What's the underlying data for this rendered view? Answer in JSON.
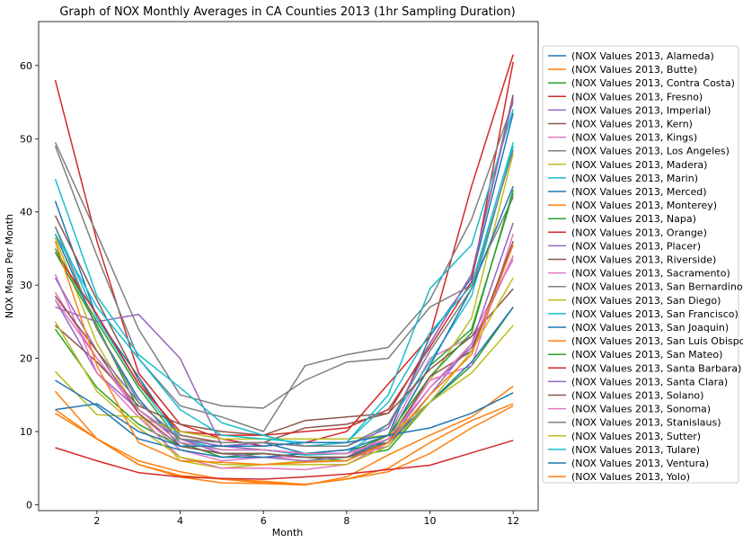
{
  "chart_data": {
    "type": "line",
    "title": "Graph of NOX Monthly Averages in CA Counties 2013 (1hr Sampling Duration)",
    "xlabel": "Month",
    "ylabel": "NOX Mean Per Month",
    "xlim": [
      0.6,
      12.6
    ],
    "ylim": [
      -0.8,
      66
    ],
    "xticks": [
      2,
      4,
      6,
      8,
      10,
      12
    ],
    "yticks": [
      0,
      10,
      20,
      30,
      40,
      50,
      60
    ],
    "grid": false,
    "legend_position": "outside-right",
    "x": [
      1,
      2,
      3,
      4,
      5,
      6,
      7,
      8,
      9,
      10,
      11,
      12
    ],
    "series": [
      {
        "name": "(NOX Values 2013, Alameda)",
        "color": "#1f77b4",
        "values": [
          41.5,
          25.5,
          17.5,
          9.0,
          8.0,
          8.5,
          7.0,
          7.5,
          9.5,
          23.0,
          31.0,
          53.5
        ]
      },
      {
        "name": "(NOX Values 2013, Butte)",
        "color": "#ff7f0e",
        "values": [
          12.5,
          9.0,
          5.5,
          3.8,
          3.0,
          2.9,
          2.7,
          3.8,
          6.8,
          9.5,
          12.0,
          16.2
        ]
      },
      {
        "name": "(NOX Values 2013, Contra Costa)",
        "color": "#2ca02c",
        "values": [
          35.0,
          25.0,
          16.0,
          8.5,
          6.5,
          7.0,
          6.5,
          6.0,
          9.0,
          19.0,
          24.0,
          42.5
        ]
      },
      {
        "name": "(NOX Values 2013, Fresno)",
        "color": "#d62728",
        "values": [
          58.0,
          36.0,
          18.0,
          11.0,
          9.0,
          8.0,
          8.5,
          10.0,
          16.5,
          23.0,
          43.5,
          61.5
        ]
      },
      {
        "name": "(NOX Values 2013, Imperial)",
        "color": "#9467bd",
        "values": [
          27.0,
          25.0,
          26.0,
          20.0,
          8.0,
          7.5,
          7.0,
          7.0,
          8.5,
          16.0,
          21.5,
          34.0
        ]
      },
      {
        "name": "(NOX Values 2013, Kern)",
        "color": "#8c564b",
        "values": [
          39.5,
          28.0,
          17.0,
          9.5,
          8.5,
          8.5,
          10.5,
          11.0,
          12.5,
          22.0,
          31.5,
          56.0
        ]
      },
      {
        "name": "(NOX Values 2013, Kings)",
        "color": "#e377c2",
        "values": [
          29.0,
          20.0,
          12.5,
          7.5,
          6.0,
          6.5,
          6.5,
          6.5,
          9.5,
          20.0,
          23.0,
          33.5
        ]
      },
      {
        "name": "(NOX Values 2013, Los Angeles)",
        "color": "#7f7f7f",
        "values": [
          49.5,
          37.0,
          24.0,
          15.0,
          13.5,
          13.2,
          17.0,
          19.5,
          20.0,
          27.0,
          30.0,
          42.0
        ]
      },
      {
        "name": "(NOX Values 2013, Madera)",
        "color": "#bcbd22",
        "values": [
          36.5,
          22.0,
          12.5,
          6.0,
          5.0,
          5.5,
          6.0,
          6.0,
          9.0,
          17.0,
          25.5,
          48.0
        ]
      },
      {
        "name": "(NOX Values 2013, Marin)",
        "color": "#17becf",
        "values": [
          38.0,
          25.5,
          16.5,
          9.0,
          7.5,
          7.5,
          6.8,
          7.0,
          11.0,
          19.5,
          28.5,
          49.0
        ]
      },
      {
        "name": "(NOX Values 2013, Merced)",
        "color": "#1f77b4",
        "values": [
          37.0,
          24.0,
          14.5,
          8.0,
          7.0,
          7.0,
          6.5,
          6.5,
          9.0,
          19.0,
          29.5,
          43.5
        ]
      },
      {
        "name": "(NOX Values 2013, Monterey)",
        "color": "#ff7f0e",
        "values": [
          13.0,
          9.0,
          6.0,
          4.5,
          3.5,
          3.2,
          2.8,
          3.5,
          4.5,
          7.0,
          10.5,
          13.5
        ]
      },
      {
        "name": "(NOX Values 2013, Napa)",
        "color": "#2ca02c",
        "values": [
          24.0,
          16.0,
          11.0,
          8.0,
          7.0,
          7.0,
          6.5,
          6.5,
          7.5,
          14.0,
          19.0,
          27.0
        ]
      },
      {
        "name": "(NOX Values 2013, Orange)",
        "color": "#d62728",
        "values": [
          34.5,
          26.0,
          16.5,
          10.0,
          9.5,
          9.5,
          10.0,
          10.5,
          13.0,
          21.5,
          30.5,
          60.5
        ]
      },
      {
        "name": "(NOX Values 2013, Placer)",
        "color": "#9467bd",
        "values": [
          28.0,
          18.0,
          13.0,
          9.0,
          7.0,
          6.5,
          6.0,
          6.5,
          8.0,
          15.0,
          22.0,
          38.5
        ]
      },
      {
        "name": "(NOX Values 2013, Riverside)",
        "color": "#8c564b",
        "values": [
          24.5,
          19.5,
          13.5,
          11.0,
          10.0,
          9.5,
          11.5,
          12.0,
          12.5,
          18.5,
          23.0,
          29.5
        ]
      },
      {
        "name": "(NOX Values 2013, Sacramento)",
        "color": "#e377c2",
        "values": [
          31.5,
          18.0,
          12.0,
          6.5,
          5.0,
          5.0,
          4.8,
          5.5,
          8.5,
          17.0,
          19.0,
          37.0
        ]
      },
      {
        "name": "(NOX Values 2013, San Bernardino)",
        "color": "#7f7f7f",
        "values": [
          49.0,
          34.0,
          20.0,
          13.5,
          12.0,
          10.0,
          19.0,
          20.5,
          21.5,
          28.0,
          39.0,
          55.0
        ]
      },
      {
        "name": "(NOX Values 2013, San Diego)",
        "color": "#bcbd22",
        "values": [
          18.2,
          12.3,
          12.0,
          10.0,
          9.0,
          9.0,
          9.0,
          9.0,
          9.5,
          14.0,
          18.0,
          24.5
        ]
      },
      {
        "name": "(NOX Values 2013, San Francisco)",
        "color": "#17becf",
        "values": [
          44.5,
          28.5,
          20.5,
          16.0,
          11.2,
          9.5,
          8.0,
          8.5,
          15.0,
          29.5,
          35.5,
          54.0
        ]
      },
      {
        "name": "(NOX Values 2013, San Joaquin)",
        "color": "#1f77b4",
        "values": [
          17.0,
          13.5,
          9.0,
          7.5,
          6.5,
          6.5,
          7.0,
          7.5,
          8.5,
          14.0,
          19.5,
          27.0
        ]
      },
      {
        "name": "(NOX Values 2013, San Luis Obispo)",
        "color": "#ff7f0e",
        "values": [
          15.5,
          9.0,
          5.5,
          4.0,
          3.5,
          3.0,
          2.8,
          3.5,
          5.0,
          8.5,
          11.5,
          13.8
        ]
      },
      {
        "name": "(NOX Values 2013, San Mateo)",
        "color": "#2ca02c",
        "values": [
          34.5,
          24.5,
          13.0,
          8.5,
          7.5,
          7.5,
          7.0,
          7.0,
          9.5,
          17.5,
          23.5,
          43.0
        ]
      },
      {
        "name": "(NOX Values 2013, Santa Barbara)",
        "color": "#d62728",
        "values": [
          7.8,
          6.0,
          4.4,
          3.8,
          3.6,
          3.5,
          3.8,
          4.2,
          4.8,
          5.4,
          7.1,
          8.8
        ]
      },
      {
        "name": "(NOX Values 2013, Santa Clara)",
        "color": "#9467bd",
        "values": [
          31.0,
          21.0,
          14.0,
          9.0,
          8.0,
          8.5,
          8.0,
          8.0,
          10.5,
          22.0,
          31.5,
          55.5
        ]
      },
      {
        "name": "(NOX Values 2013, Solano)",
        "color": "#8c564b",
        "values": [
          28.5,
          21.0,
          12.5,
          8.0,
          7.0,
          7.0,
          6.5,
          6.5,
          8.5,
          17.5,
          21.0,
          36.0
        ]
      },
      {
        "name": "(NOX Values 2013, Sonoma)",
        "color": "#e377c2",
        "values": [
          28.0,
          20.0,
          13.0,
          8.5,
          7.5,
          7.5,
          7.0,
          7.0,
          9.0,
          16.0,
          22.0,
          34.0
        ]
      },
      {
        "name": "(NOX Values 2013, Stanislaus)",
        "color": "#7f7f7f",
        "values": [
          38.0,
          24.0,
          14.0,
          9.0,
          8.5,
          8.5,
          8.0,
          8.0,
          11.0,
          21.0,
          29.5,
          48.5
        ]
      },
      {
        "name": "(NOX Values 2013, Sutter)",
        "color": "#bcbd22",
        "values": [
          25.0,
          15.5,
          10.5,
          6.5,
          5.5,
          5.5,
          5.5,
          5.5,
          8.0,
          14.0,
          21.0,
          31.0
        ]
      },
      {
        "name": "(NOX Values 2013, Tulare)",
        "color": "#17becf",
        "values": [
          37.0,
          27.0,
          20.0,
          13.0,
          9.5,
          9.0,
          8.5,
          8.5,
          14.0,
          23.5,
          30.0,
          49.5
        ]
      },
      {
        "name": "(NOX Values 2013, Ventura)",
        "color": "#1f77b4",
        "values": [
          13.0,
          13.8,
          10.0,
          8.0,
          8.0,
          8.0,
          8.5,
          8.5,
          9.5,
          10.5,
          12.5,
          15.3
        ]
      },
      {
        "name": "(NOX Values 2013, Yolo)",
        "color": "#ff7f0e",
        "values": [
          36.0,
          19.0,
          8.5,
          6.0,
          5.8,
          5.5,
          5.8,
          6.0,
          8.5,
          15.0,
          20.5,
          35.5
        ]
      }
    ]
  }
}
